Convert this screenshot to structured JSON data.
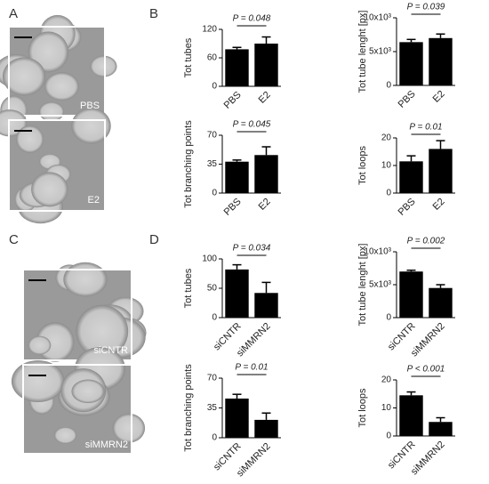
{
  "panel_labels": [
    "A",
    "B",
    "C",
    "D"
  ],
  "image_labels": [
    "PBS",
    "E2",
    "siCNTR",
    "siMMRN2"
  ],
  "chart_data": [
    {
      "type": "bar",
      "ylabel": "Tot tubes",
      "categories": [
        "PBS",
        "E2"
      ],
      "values": [
        78,
        90
      ],
      "errors": [
        4,
        14
      ],
      "color": "#000000",
      "ylim": [
        0,
        120
      ],
      "yticks": [
        0,
        60,
        120
      ],
      "annotation": "P = 0.048"
    },
    {
      "type": "bar",
      "ylabel": "Tot tube lenght [px]",
      "categories": [
        "PBS",
        "E2"
      ],
      "values": [
        6400,
        7000
      ],
      "errors": [
        400,
        600
      ],
      "color": "#000000",
      "ylim": [
        0,
        10000
      ],
      "yticks": [
        0,
        {
          "value": 5000,
          "label": "5x10³"
        },
        {
          "value": 10000,
          "label": "10x10³"
        }
      ],
      "annotation": "P = 0.039"
    },
    {
      "type": "bar",
      "ylabel": "Tot branching points",
      "categories": [
        "PBS",
        "E2"
      ],
      "values": [
        38,
        46
      ],
      "errors": [
        2,
        10
      ],
      "color": "#000000",
      "ylim": [
        0,
        70
      ],
      "yticks": [
        0,
        35,
        70
      ],
      "annotation": "P = 0.045"
    },
    {
      "type": "bar",
      "ylabel": "Tot loops",
      "categories": [
        "PBS",
        "E2"
      ],
      "values": [
        11.5,
        16
      ],
      "errors": [
        2,
        3
      ],
      "color": "#000000",
      "ylim": [
        0,
        20
      ],
      "yticks": [
        0,
        10,
        20
      ],
      "annotation": "P = 0.01"
    },
    {
      "type": "bar",
      "ylabel": "Tot tubes",
      "categories": [
        "siCNTR",
        "siMMRN2"
      ],
      "values": [
        82,
        42
      ],
      "errors": [
        8,
        18
      ],
      "color": "#000000",
      "ylim": [
        0,
        100
      ],
      "yticks": [
        0,
        50,
        100
      ],
      "annotation": "P = 0.034"
    },
    {
      "type": "bar",
      "ylabel": "Tot tube lenght [px]",
      "categories": [
        "siCNTR",
        "siMMRN2"
      ],
      "values": [
        7000,
        4500
      ],
      "errors": [
        200,
        500
      ],
      "color": "#000000",
      "ylim": [
        0,
        10000
      ],
      "yticks": [
        0,
        {
          "value": 5000,
          "label": "5x10³"
        },
        {
          "value": 10000,
          "label": "10x10³"
        }
      ],
      "annotation": "P = 0.002"
    },
    {
      "type": "bar",
      "ylabel": "Tot branching points",
      "categories": [
        "siCNTR",
        "siMMRN2"
      ],
      "values": [
        46,
        21
      ],
      "errors": [
        5,
        8
      ],
      "color": "#000000",
      "ylim": [
        0,
        70
      ],
      "yticks": [
        0,
        35,
        70
      ],
      "annotation": "P = 0.01"
    },
    {
      "type": "bar",
      "ylabel": "Tot loops",
      "categories": [
        "siCNTR",
        "siMMRN2"
      ],
      "values": [
        14.5,
        5
      ],
      "errors": [
        1.2,
        1.5
      ],
      "color": "#000000",
      "ylim": [
        0,
        20
      ],
      "yticks": [
        0,
        10,
        20
      ],
      "annotation": "P < 0.001"
    }
  ]
}
